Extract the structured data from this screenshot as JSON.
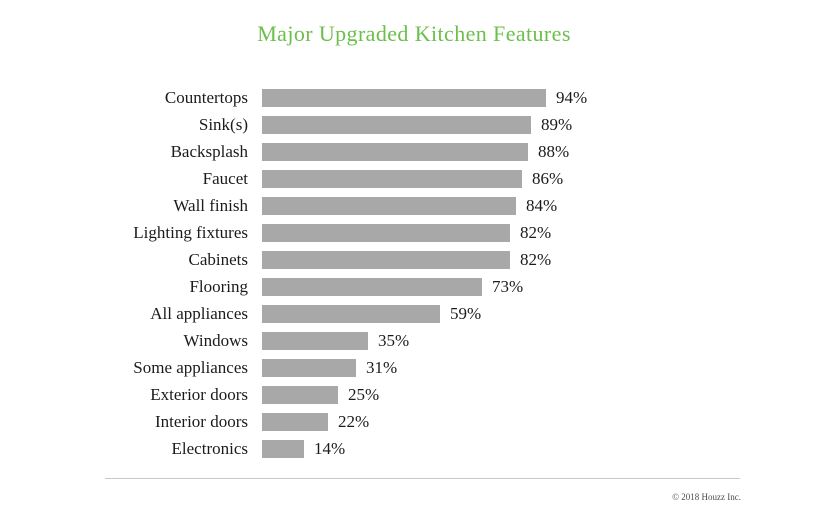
{
  "title": "Major Upgraded Kitchen Features",
  "footer": {
    "copyright": "© 2018 Houzz Inc."
  },
  "colors": {
    "title": "#6cbf4b",
    "bar": "#a8a8a8",
    "text": "#1b1b1b",
    "divider": "#c8c8c8",
    "footer_text": "#4a4a4a",
    "background": "#ffffff"
  },
  "chart_data": {
    "type": "bar",
    "orientation": "horizontal",
    "title": "Major Upgraded Kitchen Features",
    "categories": [
      "Countertops",
      "Sink(s)",
      "Backsplash",
      "Faucet",
      "Wall finish",
      "Lighting fixtures",
      "Cabinets",
      "Flooring",
      "All appliances",
      "Windows",
      "Some appliances",
      "Exterior doors",
      "Interior doors",
      "Electronics"
    ],
    "values": [
      94,
      89,
      88,
      86,
      84,
      82,
      82,
      73,
      59,
      35,
      31,
      25,
      22,
      14
    ],
    "value_suffix": "%",
    "xlabel": "",
    "ylabel": "",
    "xlim": [
      0,
      100
    ],
    "grid": false,
    "legend": null,
    "data_labels": "outside-end"
  }
}
